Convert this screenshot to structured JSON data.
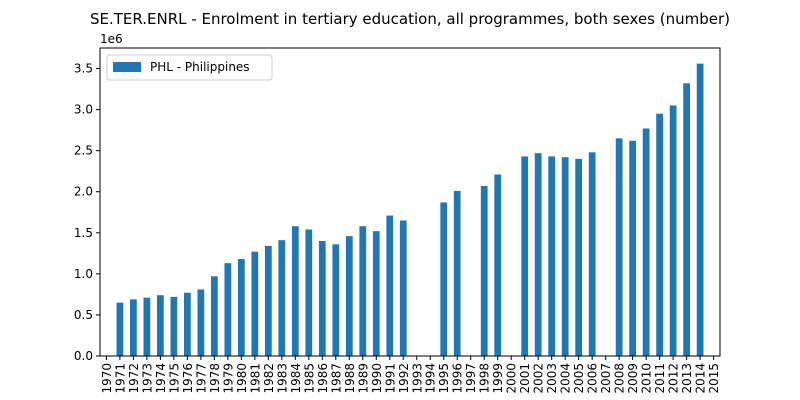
{
  "chart_data": {
    "type": "bar",
    "title": "SE.TER.ENRL - Enrolment in tertiary education, all programmes, both sexes (number)",
    "y_offset_label": "1e6",
    "y_scale": 1000000,
    "ylim": [
      0,
      3750000
    ],
    "yticks": [
      0,
      500000,
      1000000,
      1500000,
      2000000,
      2500000,
      3000000,
      3500000
    ],
    "ytick_labels": [
      "0.0",
      "0.5",
      "1.0",
      "1.5",
      "2.0",
      "2.5",
      "3.0",
      "3.5"
    ],
    "xlabel": "",
    "ylabel": "",
    "grid": false,
    "legend_position": "upper-left",
    "series": [
      {
        "name": "PHL - Philippines",
        "color": "#1f77b4",
        "values": [
          null,
          650000,
          690000,
          710000,
          740000,
          720000,
          770000,
          810000,
          970000,
          1130000,
          1180000,
          1270000,
          1340000,
          1410000,
          1580000,
          1540000,
          1400000,
          1360000,
          1460000,
          1580000,
          1520000,
          1710000,
          1650000,
          null,
          null,
          1870000,
          2010000,
          null,
          2070000,
          2210000,
          null,
          2430000,
          2470000,
          2430000,
          2420000,
          2400000,
          2480000,
          null,
          2650000,
          2620000,
          2770000,
          2950000,
          3050000,
          3320000,
          3560000,
          null
        ]
      }
    ],
    "categories": [
      "1970",
      "1971",
      "1972",
      "1973",
      "1974",
      "1975",
      "1976",
      "1977",
      "1978",
      "1979",
      "1980",
      "1981",
      "1982",
      "1983",
      "1984",
      "1985",
      "1986",
      "1987",
      "1988",
      "1989",
      "1990",
      "1991",
      "1992",
      "1993",
      "1994",
      "1995",
      "1996",
      "1997",
      "1998",
      "1999",
      "2000",
      "2001",
      "2002",
      "2003",
      "2004",
      "2005",
      "2006",
      "2007",
      "2008",
      "2009",
      "2010",
      "2011",
      "2012",
      "2013",
      "2014",
      "2015"
    ]
  }
}
